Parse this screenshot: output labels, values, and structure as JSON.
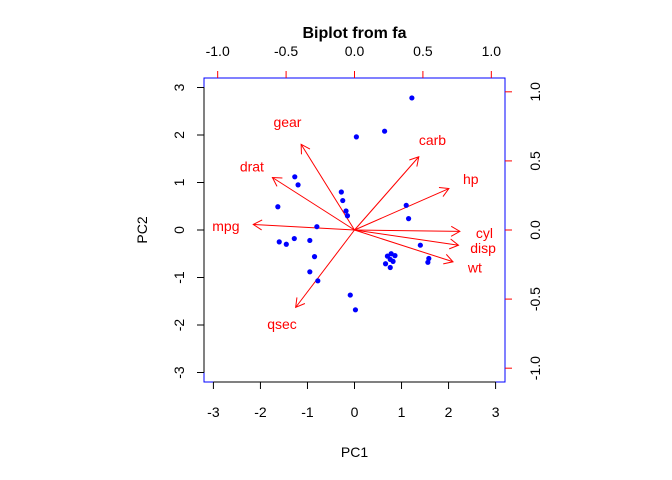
{
  "chart_data": {
    "type": "scatter",
    "title": "Biplot from fa",
    "xlabel": "PC1",
    "ylabel": "PC2",
    "xlim": [
      -3.2,
      3.2
    ],
    "ylim": [
      -3.2,
      3.2
    ],
    "xticks": [
      -3,
      -2,
      -1,
      0,
      1,
      2,
      3
    ],
    "yticks": [
      -3,
      -2,
      -1,
      0,
      1,
      2,
      3
    ],
    "loading_lim": [
      -1.1,
      1.1
    ],
    "loading_xticks": [
      -1.0,
      -0.5,
      0.0,
      0.5,
      1.0
    ],
    "loading_yticks": [
      -1.0,
      -0.5,
      0.0,
      0.5,
      1.0
    ],
    "loading_tick_labels": [
      "-1.0",
      "-0.5",
      "0.0",
      "0.5",
      "1.0"
    ],
    "grid": false,
    "colors": {
      "points": "#0000ff",
      "loadings": "#ff0000",
      "top_right_axes": "#0000ff",
      "top_right_ticks": "#ff0000"
    },
    "scores": [
      {
        "x": 1.22,
        "y": 2.78
      },
      {
        "x": 0.64,
        "y": 2.08
      },
      {
        "x": 0.04,
        "y": 1.96
      },
      {
        "x": -1.27,
        "y": 1.12
      },
      {
        "x": -1.2,
        "y": 0.95
      },
      {
        "x": -0.28,
        "y": 0.8
      },
      {
        "x": -0.25,
        "y": 0.62
      },
      {
        "x": -0.18,
        "y": 0.4
      },
      {
        "x": -0.15,
        "y": 0.3
      },
      {
        "x": 1.1,
        "y": 0.52
      },
      {
        "x": 1.15,
        "y": 0.24
      },
      {
        "x": -1.63,
        "y": 0.49
      },
      {
        "x": -0.8,
        "y": 0.07
      },
      {
        "x": -1.28,
        "y": -0.18
      },
      {
        "x": -1.6,
        "y": -0.25
      },
      {
        "x": -1.45,
        "y": -0.3
      },
      {
        "x": -0.95,
        "y": -0.22
      },
      {
        "x": -0.85,
        "y": -0.56
      },
      {
        "x": -0.95,
        "y": -0.88
      },
      {
        "x": -0.78,
        "y": -1.07
      },
      {
        "x": 1.4,
        "y": -0.32
      },
      {
        "x": 0.78,
        "y": -0.5
      },
      {
        "x": 0.86,
        "y": -0.54
      },
      {
        "x": 0.7,
        "y": -0.55
      },
      {
        "x": 0.76,
        "y": -0.62
      },
      {
        "x": 0.66,
        "y": -0.71
      },
      {
        "x": 0.82,
        "y": -0.66
      },
      {
        "x": 0.76,
        "y": -0.79
      },
      {
        "x": 1.58,
        "y": -0.6
      },
      {
        "x": 1.56,
        "y": -0.68
      },
      {
        "x": -0.09,
        "y": -1.37
      },
      {
        "x": 0.02,
        "y": -1.68
      }
    ],
    "loadings": [
      {
        "name": "gear",
        "x": -0.39,
        "y": 0.62,
        "lx": -0.49,
        "ly": 0.78
      },
      {
        "name": "carb",
        "x": 0.47,
        "y": 0.53,
        "lx": 0.57,
        "ly": 0.65
      },
      {
        "name": "drat",
        "x": -0.6,
        "y": 0.38,
        "lx": -0.75,
        "ly": 0.46
      },
      {
        "name": "hp",
        "x": 0.69,
        "y": 0.3,
        "lx": 0.85,
        "ly": 0.37
      },
      {
        "name": "mpg",
        "x": -0.74,
        "y": 0.04,
        "lx": -0.94,
        "ly": 0.03
      },
      {
        "name": "cyl",
        "x": 0.77,
        "y": -0.01,
        "lx": 0.95,
        "ly": -0.02
      },
      {
        "name": "disp",
        "x": 0.76,
        "y": -0.11,
        "lx": 0.94,
        "ly": -0.13
      },
      {
        "name": "wt",
        "x": 0.72,
        "y": -0.23,
        "lx": 0.88,
        "ly": -0.27
      },
      {
        "name": "qsec",
        "x": -0.43,
        "y": -0.56,
        "lx": -0.53,
        "ly": -0.68
      }
    ]
  }
}
